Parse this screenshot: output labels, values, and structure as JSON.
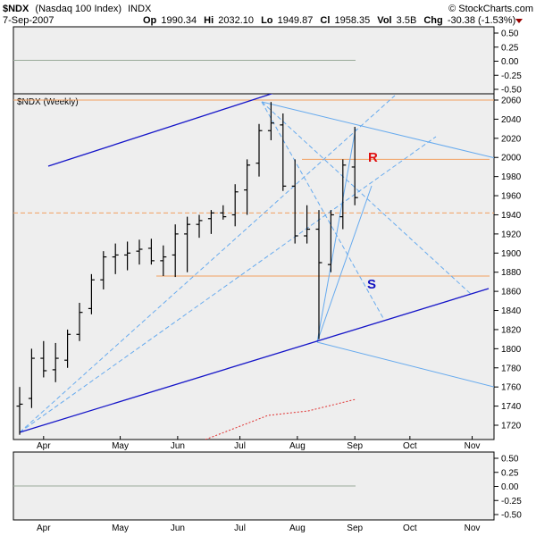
{
  "header": {
    "symbol": "$NDX",
    "name": "(Nasdaq 100 Index)",
    "exchange": "INDX",
    "watermark": "© StockCharts.com",
    "date": "7-Sep-2007",
    "quote": [
      {
        "label": "Op",
        "value": "1990.34"
      },
      {
        "label": "Hi",
        "value": "2032.10"
      },
      {
        "label": "Lo",
        "value": "1949.87"
      },
      {
        "label": "Cl",
        "value": "1958.35"
      },
      {
        "label": "Vol",
        "value": "3.5B"
      },
      {
        "label": "Chg",
        "value": "-30.38 (-1.53%)"
      }
    ]
  },
  "colors": {
    "panel_bg": "#eeeeee",
    "bar": "#000000",
    "channel": "#1414c8",
    "fan": "#66aaee",
    "level_orange": "#f2a060",
    "r_label": "#e01010",
    "s_label": "#1010c0",
    "zero_line": "#99aa99",
    "ma_red": "#e03030",
    "down_arrow": "#990000"
  },
  "chart_data": [
    {
      "type": "line",
      "panel": "top indicator",
      "ylim": [
        -0.5,
        0.5
      ],
      "ticks": [
        "0.50",
        "0.25",
        "0.00",
        "-0.25",
        "-0.50"
      ],
      "series": []
    },
    {
      "type": "bar",
      "panel": "price",
      "title": "$NDX (Weekly)",
      "ylim": [
        1705,
        2065
      ],
      "yticks": [
        "2060",
        "2040",
        "2020",
        "2000",
        "1980",
        "1960",
        "1940",
        "1920",
        "1900",
        "1880",
        "1860",
        "1840",
        "1820",
        "1800",
        "1780",
        "1760",
        "1740",
        "1720"
      ],
      "xticks": [
        "Apr",
        "May",
        "Jun",
        "Jul",
        "Aug",
        "Sep",
        "Oct",
        "Nov"
      ],
      "annotations": [
        "R",
        "S"
      ],
      "ohlc": [
        {
          "o": 1740,
          "h": 1760,
          "l": 1710,
          "c": 1742
        },
        {
          "o": 1748,
          "h": 1800,
          "l": 1738,
          "c": 1790
        },
        {
          "o": 1790,
          "h": 1808,
          "l": 1770,
          "c": 1777
        },
        {
          "o": 1778,
          "h": 1806,
          "l": 1765,
          "c": 1790
        },
        {
          "o": 1788,
          "h": 1820,
          "l": 1780,
          "c": 1815
        },
        {
          "o": 1815,
          "h": 1848,
          "l": 1808,
          "c": 1838
        },
        {
          "o": 1842,
          "h": 1878,
          "l": 1836,
          "c": 1872
        },
        {
          "o": 1872,
          "h": 1902,
          "l": 1862,
          "c": 1896
        },
        {
          "o": 1896,
          "h": 1910,
          "l": 1878,
          "c": 1898
        },
        {
          "o": 1898,
          "h": 1912,
          "l": 1882,
          "c": 1900
        },
        {
          "o": 1902,
          "h": 1914,
          "l": 1888,
          "c": 1904
        },
        {
          "o": 1905,
          "h": 1915,
          "l": 1888,
          "c": 1892
        },
        {
          "o": 1892,
          "h": 1908,
          "l": 1876,
          "c": 1896
        },
        {
          "o": 1898,
          "h": 1930,
          "l": 1875,
          "c": 1920
        },
        {
          "o": 1920,
          "h": 1938,
          "l": 1880,
          "c": 1930
        },
        {
          "o": 1930,
          "h": 1940,
          "l": 1916,
          "c": 1934
        },
        {
          "o": 1936,
          "h": 1945,
          "l": 1920,
          "c": 1942
        },
        {
          "o": 1942,
          "h": 1950,
          "l": 1935,
          "c": 1938
        },
        {
          "o": 1940,
          "h": 1972,
          "l": 1928,
          "c": 1964
        },
        {
          "o": 1966,
          "h": 1998,
          "l": 1940,
          "c": 1992
        },
        {
          "o": 1994,
          "h": 2035,
          "l": 1980,
          "c": 2028
        },
        {
          "o": 2028,
          "h": 2058,
          "l": 2018,
          "c": 2036
        },
        {
          "o": 2034,
          "h": 2046,
          "l": 1965,
          "c": 1970
        },
        {
          "o": 1970,
          "h": 1998,
          "l": 1910,
          "c": 1918
        },
        {
          "o": 1918,
          "h": 1950,
          "l": 1910,
          "c": 1925
        },
        {
          "o": 1925,
          "h": 1945,
          "l": 1810,
          "c": 1890
        },
        {
          "o": 1888,
          "h": 1945,
          "l": 1880,
          "c": 1940
        },
        {
          "o": 1938,
          "h": 1998,
          "l": 1925,
          "c": 1992
        },
        {
          "o": 1990,
          "h": 2032,
          "l": 1950,
          "c": 1958
        }
      ]
    },
    {
      "type": "line",
      "panel": "bottom indicator",
      "ylim": [
        -0.5,
        0.5
      ],
      "ticks": [
        "0.50",
        "0.25",
        "0.00",
        "-0.25",
        "-0.50"
      ],
      "xticks": [
        "Apr",
        "May",
        "Jun",
        "Jul",
        "Aug",
        "Sep",
        "Oct",
        "Nov"
      ],
      "series": []
    }
  ]
}
